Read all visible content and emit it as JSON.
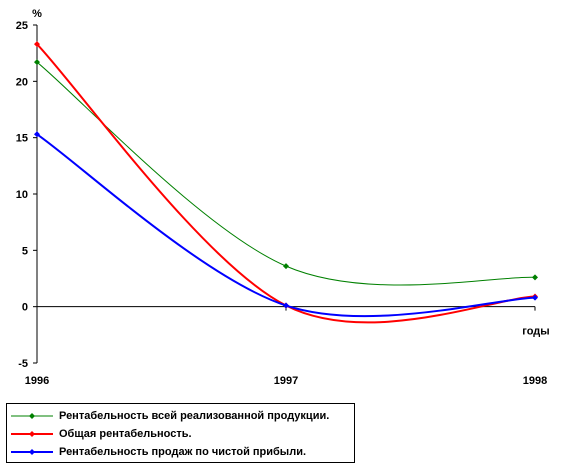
{
  "chart_data": {
    "type": "line",
    "title": "",
    "ylabel": "%",
    "xlabel": "годы",
    "x": [
      "1996",
      "1997",
      "1998"
    ],
    "ylim": [
      -5,
      25
    ],
    "yticks": [
      -5,
      0,
      5,
      10,
      15,
      20,
      25
    ],
    "grid": false,
    "legend_position": "bottom-left",
    "series": [
      {
        "name": "Рентабельность всей реализованной продукции.",
        "color": "#008000",
        "values": [
          21.7,
          3.6,
          2.6
        ]
      },
      {
        "name": "Общая рентабельность.",
        "color": "#ff0000",
        "values": [
          23.3,
          0.1,
          0.9
        ]
      },
      {
        "name": "Рентабельность продаж по чистой прибыли.",
        "color": "#0000ff",
        "values": [
          15.3,
          0.1,
          0.8
        ]
      }
    ]
  }
}
